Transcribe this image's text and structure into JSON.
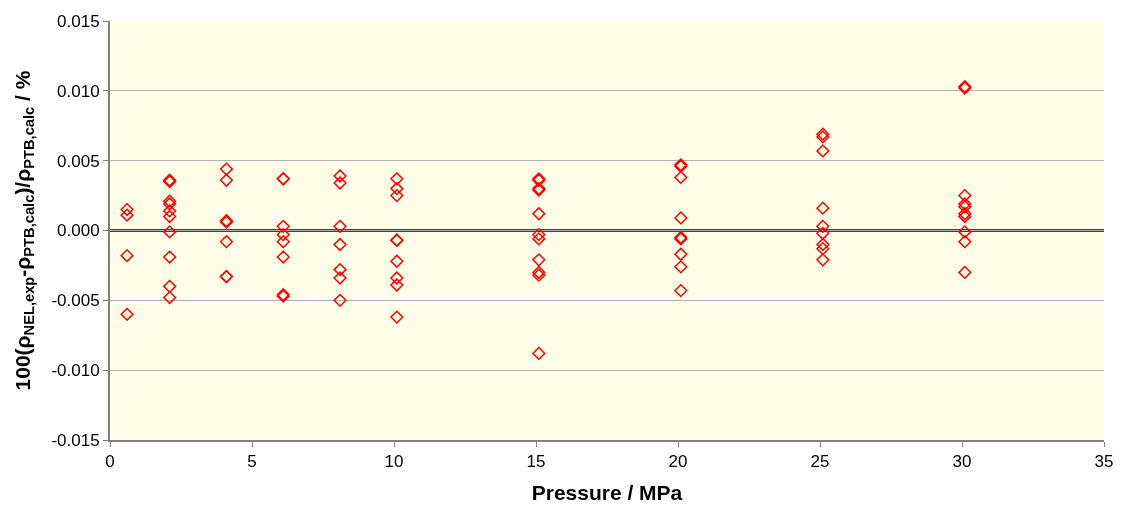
{
  "chart_data": {
    "type": "scatter",
    "xlabel": "Pressure / MPa",
    "ylabel": "100(ρ$_{NEL,exp}$-ρ$_{PTB,calc}$)/ρ$_{PTB,calc}$ / %",
    "x": [
      0.6,
      0.6,
      0.6,
      0.6,
      2.1,
      2.1,
      2.1,
      2.1,
      2.1,
      2.1,
      2.1,
      2.1,
      2.1,
      2.1,
      4.1,
      4.1,
      4.1,
      4.1,
      4.1,
      4.1,
      4.1,
      6.1,
      6.1,
      6.1,
      6.1,
      6.1,
      6.1,
      6.1,
      6.1,
      8.1,
      8.1,
      8.1,
      8.1,
      8.1,
      8.1,
      8.1,
      10.1,
      10.1,
      10.1,
      10.1,
      10.1,
      10.1,
      10.1,
      10.1,
      10.1,
      15.1,
      15.1,
      15.1,
      15.1,
      15.1,
      15.1,
      15.1,
      15.1,
      15.1,
      15.1,
      15.1,
      20.1,
      20.1,
      20.1,
      20.1,
      20.1,
      20.1,
      20.1,
      20.1,
      20.1,
      25.1,
      25.1,
      25.1,
      25.1,
      25.1,
      25.1,
      25.1,
      25.1,
      25.1,
      30.1,
      30.1,
      30.1,
      30.1,
      30.1,
      30.1,
      30.1,
      30.1,
      30.1,
      30.1
    ],
    "series": [
      {
        "color": "#ff0000",
        "values": [
          0.0015,
          0.0011,
          -0.0018,
          -0.006,
          0.0036,
          0.0035,
          0.0021,
          0.0019,
          0.0014,
          0.001,
          -0.0001,
          -0.0019,
          -0.004,
          -0.0048,
          0.0044,
          0.0036,
          0.0007,
          0.0006,
          -0.0008,
          -0.0033,
          -0.0033,
          0.0037,
          0.0037,
          0.0003,
          -0.0003,
          -0.0008,
          -0.0019,
          -0.0046,
          -0.0047,
          0.0039,
          0.0034,
          0.0003,
          -0.001,
          -0.0028,
          -0.0034,
          -0.005,
          0.0037,
          0.003,
          0.0025,
          -0.0007,
          -0.0007,
          -0.0022,
          -0.0034,
          -0.0039,
          -0.0062,
          0.0037,
          0.0036,
          0.003,
          0.0029,
          0.0012,
          -0.0003,
          -0.0006,
          -0.0021,
          -0.003,
          -0.0032,
          -0.0088,
          0.0047,
          0.0046,
          0.0038,
          0.0009,
          -0.0005,
          -0.0006,
          -0.0017,
          -0.0026,
          -0.0043,
          0.0069,
          0.0067,
          0.0057,
          0.0016,
          0.0003,
          -0.0002,
          -0.001,
          -0.0013,
          -0.0021,
          0.0103,
          0.0102,
          0.0025,
          0.0019,
          0.0017,
          0.0012,
          0.001,
          -0.0001,
          -0.0008,
          -0.003
        ]
      }
    ],
    "xlim": [
      0,
      35
    ],
    "xticks": [
      0,
      5,
      10,
      15,
      20,
      25,
      30,
      35
    ],
    "ylim": [
      -0.015,
      0.015
    ],
    "yticks": [
      {
        "value": -0.015,
        "label": "-0.015"
      },
      {
        "value": -0.01,
        "label": "-0.010"
      },
      {
        "value": -0.005,
        "label": "-0.005"
      },
      {
        "value": 0,
        "label": "0.000"
      },
      {
        "value": 0.005,
        "label": "0.005"
      },
      {
        "value": 0.01,
        "label": "0.010"
      },
      {
        "value": 0.015,
        "label": "0.015"
      }
    ],
    "ref_lines": [
      {
        "axis": "y",
        "value": 0,
        "color": "#000000"
      }
    ],
    "grid": "y",
    "marker": "diamond"
  }
}
